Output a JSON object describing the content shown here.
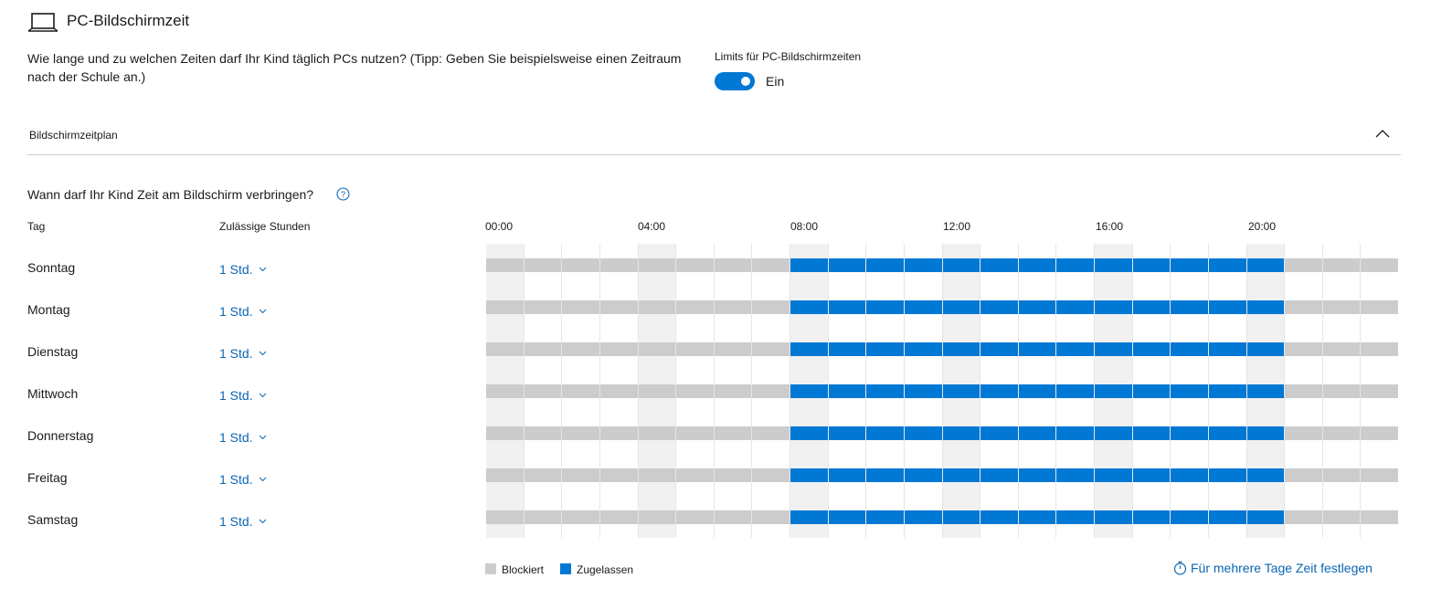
{
  "header": {
    "icon": "laptop-icon",
    "title": "PC-Bildschirmzeit",
    "description": "Wie lange und zu welchen Zeiten darf Ihr Kind täglich PCs nutzen? (Tipp: Geben Sie beispielsweise einen Zeitraum nach der Schule an.)"
  },
  "limits": {
    "label": "Limits für PC-Bildschirmzeiten",
    "toggle_on": true,
    "state": "Ein"
  },
  "schedule_section": {
    "title": "Bildschirmzeitplan",
    "expanded": true
  },
  "question": {
    "text": "Wann darf Ihr Kind Zeit am Bildschirm verbringen?",
    "help_icon": "help-circle-icon"
  },
  "table": {
    "col_day": "Tag",
    "col_hours": "Zulässige Stunden",
    "time_labels": [
      "00:00",
      "04:00",
      "08:00",
      "12:00",
      "16:00",
      "20:00"
    ],
    "slot_count": 24,
    "allowed_from_slot": 8,
    "allowed_to_slot": 21,
    "days": [
      {
        "name": "Sonntag",
        "hours": "1 Std."
      },
      {
        "name": "Montag",
        "hours": "1 Std."
      },
      {
        "name": "Dienstag",
        "hours": "1 Std."
      },
      {
        "name": "Mittwoch",
        "hours": "1 Std."
      },
      {
        "name": "Donnerstag",
        "hours": "1 Std."
      },
      {
        "name": "Freitag",
        "hours": "1 Std."
      },
      {
        "name": "Samstag",
        "hours": "1 Std."
      }
    ]
  },
  "legend": {
    "blocked": "Blockiert",
    "allowed": "Zugelassen"
  },
  "multi_day_link": {
    "icon": "timer-icon",
    "label": "Für mehrere Tage Zeit festlegen"
  },
  "colors": {
    "accent": "#0078d4",
    "blocked": "#cccccc",
    "link": "#0a66b3"
  }
}
